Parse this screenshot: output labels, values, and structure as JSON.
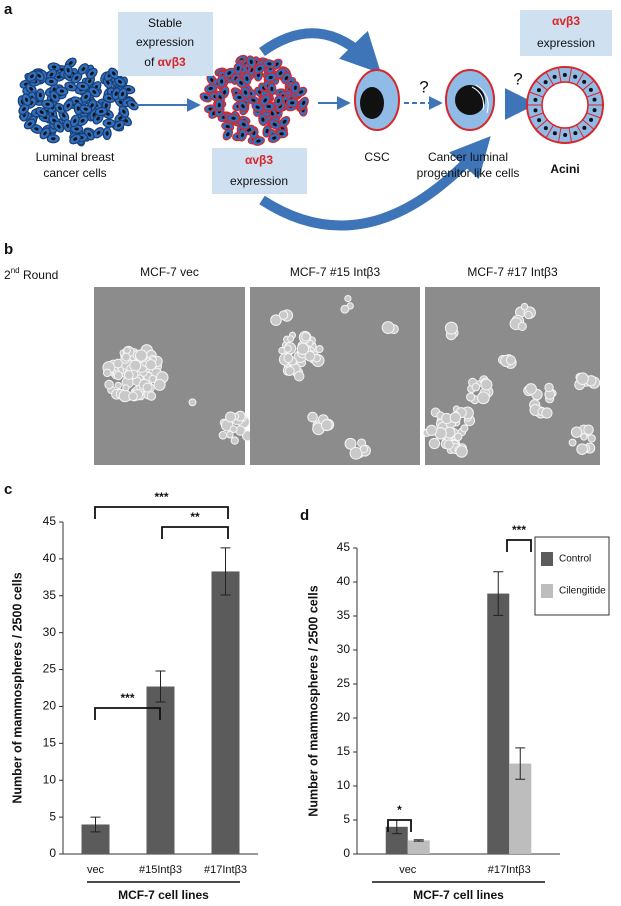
{
  "panel_a": {
    "label": "a",
    "stable_box": {
      "lines": [
        "Stable",
        "expression"
      ],
      "prefix": "of",
      "highlight": "αvβ3"
    },
    "cluster_box": {
      "highlight": "αvβ3",
      "line": "expression"
    },
    "acini_box": {
      "highlight": "αvβ3",
      "line": "expression"
    },
    "luminal_label": [
      "Luminal breast",
      "cancer cells"
    ],
    "csc_label": "CSC",
    "progenitor_label": [
      "Cancer luminal",
      "progenitor like cells"
    ],
    "acini_label": "Acini",
    "question_marks": [
      "?",
      "?"
    ]
  },
  "panel_b": {
    "label": "b",
    "round": {
      "number": "2",
      "superscript": "nd",
      "text": "Round"
    },
    "images": [
      "MCF-7 vec",
      "MCF-7 #15 Intβ3",
      "MCF-7 #17 Intβ3"
    ]
  },
  "chart_data": [
    {
      "type": "bar",
      "panel": "c",
      "categories": [
        "vec",
        "#15Intβ3",
        "#17Intβ3"
      ],
      "values": [
        4,
        22.7,
        38.3
      ],
      "errors": [
        1,
        2.1,
        3.2
      ],
      "color": "#5b5b5b",
      "ylim": [
        0,
        45
      ],
      "yticks": [
        0,
        5,
        10,
        15,
        20,
        25,
        30,
        35,
        40,
        45
      ],
      "ylabel": "Number of mammospheres / 2500 cells",
      "xlabel": "MCF-7 cell lines",
      "annotations": [
        "***",
        "***",
        "**"
      ]
    },
    {
      "type": "bar",
      "panel": "d",
      "categories": [
        "vec",
        "#17Intβ3"
      ],
      "series": [
        {
          "name": "Control",
          "color": "#5b5b5b",
          "values": [
            4,
            38.3
          ],
          "errors": [
            1,
            3.2
          ]
        },
        {
          "name": "Cilengitide",
          "color": "#bdbdbd",
          "values": [
            2,
            13.3
          ],
          "errors": [
            0.1,
            2.3
          ]
        }
      ],
      "ylim": [
        0,
        45
      ],
      "yticks": [
        0,
        5,
        10,
        15,
        20,
        25,
        30,
        35,
        40,
        45
      ],
      "ylabel": "Number of mammospheres / 2500 cells",
      "xlabel": "MCF-7 cell lines",
      "legend": "upper right",
      "annotations": [
        "*",
        "***"
      ]
    }
  ]
}
